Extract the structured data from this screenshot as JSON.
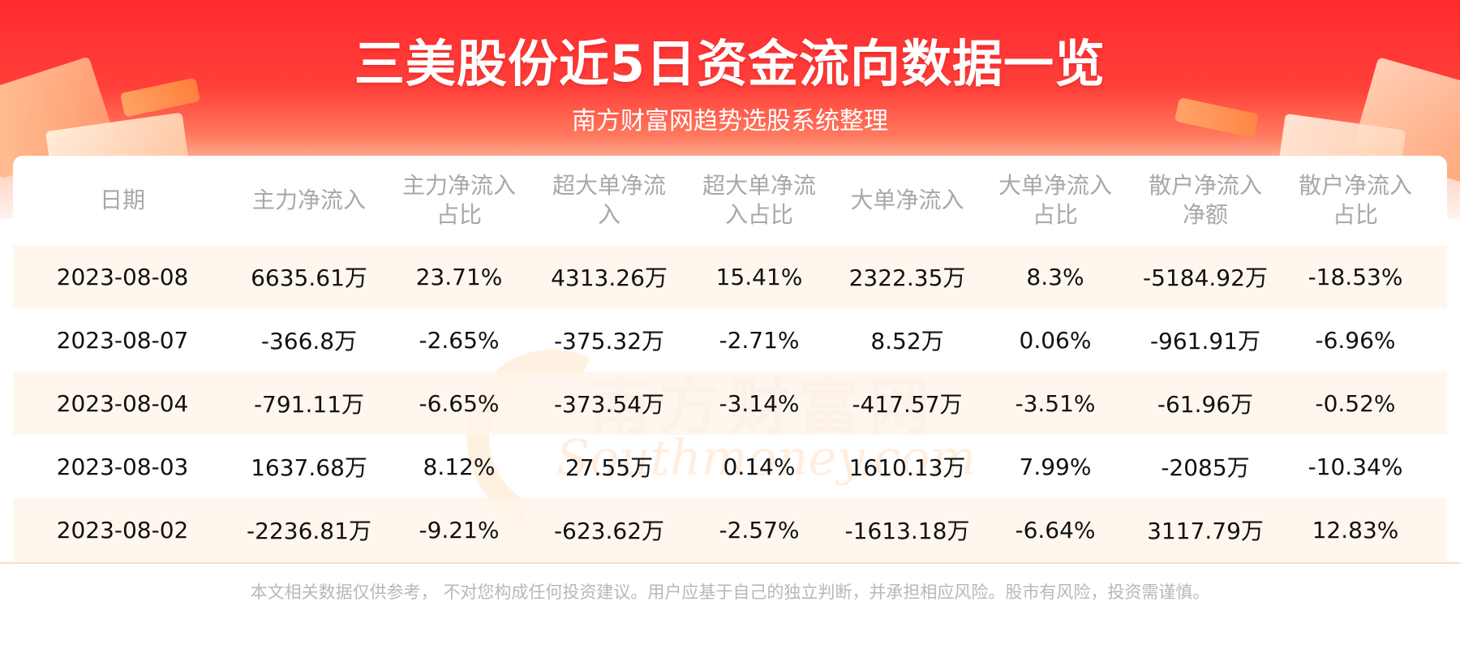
{
  "header": {
    "title": "三美股份近5日资金流向数据一览",
    "subtitle": "南方财富网趋势选股系统整理"
  },
  "watermark": {
    "cn": "南方财富网",
    "en": "Southmoney.com"
  },
  "table": {
    "columns": [
      [
        "日期"
      ],
      [
        "主力净流入"
      ],
      [
        "主力净流入",
        "占比"
      ],
      [
        "超大单净流",
        "入"
      ],
      [
        "超大单净流",
        "入占比"
      ],
      [
        "大单净流入"
      ],
      [
        "大单净流入",
        "占比"
      ],
      [
        "散户净流入",
        "净额"
      ],
      [
        "散户净流入",
        "占比"
      ]
    ],
    "rows": [
      [
        "2023-08-08",
        "6635.61万",
        "23.71%",
        "4313.26万",
        "15.41%",
        "2322.35万",
        "8.3%",
        "-5184.92万",
        "-18.53%"
      ],
      [
        "2023-08-07",
        "-366.8万",
        "-2.65%",
        "-375.32万",
        "-2.71%",
        "8.52万",
        "0.06%",
        "-961.91万",
        "-6.96%"
      ],
      [
        "2023-08-04",
        "-791.11万",
        "-6.65%",
        "-373.54万",
        "-3.14%",
        "-417.57万",
        "-3.51%",
        "-61.96万",
        "-0.52%"
      ],
      [
        "2023-08-03",
        "1637.68万",
        "8.12%",
        "27.55万",
        "0.14%",
        "1610.13万",
        "7.99%",
        "-2085万",
        "-10.34%"
      ],
      [
        "2023-08-02",
        "-2236.81万",
        "-9.21%",
        "-623.62万",
        "-2.57%",
        "-1613.18万",
        "-6.64%",
        "3117.79万",
        "12.83%"
      ]
    ]
  },
  "footer": {
    "disclaimer": "本文相关数据仅供参考， 不对您构成任何投资建议。用户应基于自己的独立判断，并承担相应风险。股市有风险，投资需谨慎。"
  },
  "colors": {
    "banner_red": "#ff2b2f",
    "alt_row": "#fff4e8",
    "header_text": "#a8a8a8",
    "cell_text": "#111111"
  }
}
